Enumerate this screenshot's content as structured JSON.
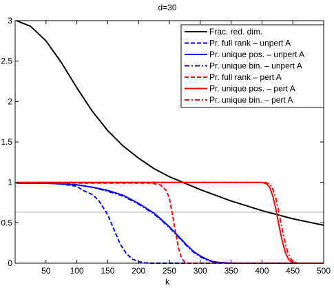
{
  "chart_data": {
    "type": "line",
    "title": "d=30",
    "xlabel": "k",
    "ylabel": "",
    "xlim": [
      0,
      500
    ],
    "ylim": [
      0,
      3
    ],
    "x_ticks": [
      50,
      100,
      150,
      200,
      250,
      300,
      350,
      400,
      450,
      500
    ],
    "y_ticks": [
      0,
      0.5,
      1,
      1.5,
      2,
      2.5,
      3
    ],
    "x_tick_labels": [
      "50",
      "100",
      "150",
      "200",
      "250",
      "300",
      "350",
      "400",
      "450",
      "500"
    ],
    "y_tick_labels": [
      "0",
      "0.5",
      "1",
      "1.5",
      "2",
      "2.5",
      "3"
    ],
    "grid": false,
    "legend_position": "top-right",
    "reference_line": {
      "y": 0.632,
      "color": "#aaaaaa"
    },
    "series": [
      {
        "name": "Frac. red. dim.",
        "color": "#000000",
        "dash": "solid",
        "x": [
          2,
          25,
          50,
          75,
          100,
          125,
          150,
          175,
          200,
          225,
          250,
          275,
          300,
          325,
          350,
          375,
          400,
          425,
          450,
          475,
          500
        ],
        "y": [
          3.0,
          2.93,
          2.75,
          2.48,
          2.17,
          1.88,
          1.64,
          1.45,
          1.3,
          1.17,
          1.07,
          0.99,
          0.91,
          0.84,
          0.77,
          0.71,
          0.65,
          0.6,
          0.55,
          0.51,
          0.47
        ]
      },
      {
        "name": "Pr. full rank – unpert A",
        "color": "#0000ff",
        "dash": "dashed",
        "x": [
          2,
          50,
          75,
          100,
          110,
          125,
          135,
          150,
          160,
          170,
          180,
          190,
          200,
          210,
          220,
          500
        ],
        "y": [
          0.99,
          0.99,
          0.98,
          0.95,
          0.9,
          0.85,
          0.78,
          0.6,
          0.42,
          0.24,
          0.12,
          0.05,
          0.02,
          0.005,
          0.0,
          0.0
        ]
      },
      {
        "name": "Pr. unique pos. – unpert A",
        "color": "#0000ff",
        "dash": "solid",
        "x": [
          2,
          50,
          75,
          100,
          125,
          150,
          175,
          200,
          225,
          240,
          250,
          260,
          270,
          280,
          290,
          300,
          310,
          320,
          330,
          340,
          350,
          500
        ],
        "y": [
          0.99,
          0.99,
          0.98,
          0.97,
          0.94,
          0.9,
          0.84,
          0.74,
          0.62,
          0.52,
          0.45,
          0.37,
          0.29,
          0.21,
          0.14,
          0.09,
          0.05,
          0.02,
          0.01,
          0.005,
          0.0,
          0.0
        ]
      },
      {
        "name": "Pr. unique bin. – unpert A",
        "color": "#0000ff",
        "dash": "dashdot",
        "x": [
          2,
          50,
          75,
          100,
          125,
          150,
          175,
          200,
          225,
          240,
          250,
          260,
          270,
          280,
          290,
          300,
          310,
          320,
          330,
          340,
          350,
          500
        ],
        "y": [
          0.99,
          0.99,
          0.98,
          0.97,
          0.94,
          0.89,
          0.83,
          0.73,
          0.61,
          0.51,
          0.44,
          0.36,
          0.28,
          0.2,
          0.13,
          0.08,
          0.04,
          0.02,
          0.01,
          0.005,
          0.0,
          0.0
        ]
      },
      {
        "name": "Pr. full rank – pert A",
        "color": "#ff0000",
        "dash": "dashed",
        "x": [
          2,
          220,
          235,
          245,
          250,
          255,
          260,
          265,
          270,
          275,
          280,
          500
        ],
        "y": [
          0.99,
          0.99,
          0.97,
          0.9,
          0.8,
          0.6,
          0.38,
          0.18,
          0.06,
          0.01,
          0.0,
          0.0
        ]
      },
      {
        "name": "Pr. unique pos. – pert A",
        "color": "#ff0000",
        "dash": "solid",
        "x": [
          2,
          400,
          408,
          413,
          418,
          423,
          428,
          433,
          438,
          443,
          448,
          455,
          500
        ],
        "y": [
          1.0,
          1.0,
          0.98,
          0.93,
          0.82,
          0.65,
          0.45,
          0.27,
          0.13,
          0.05,
          0.015,
          0.0,
          0.0
        ]
      },
      {
        "name": "Pr. unique bin. – pert A",
        "color": "#ff0000",
        "dash": "dashdot",
        "x": [
          2,
          405,
          412,
          417,
          422,
          427,
          432,
          437,
          442,
          447,
          452,
          460,
          500
        ],
        "y": [
          1.0,
          1.0,
          0.98,
          0.93,
          0.82,
          0.65,
          0.45,
          0.27,
          0.13,
          0.05,
          0.015,
          0.0,
          0.0
        ]
      }
    ]
  }
}
